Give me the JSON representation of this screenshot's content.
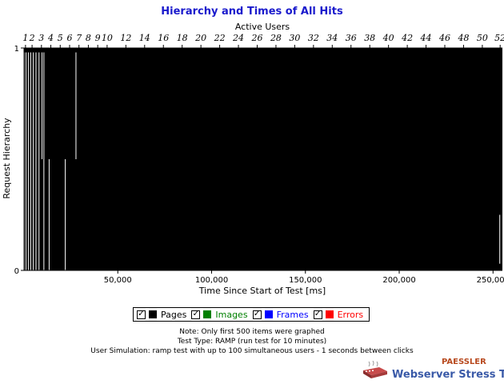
{
  "chart_data": {
    "type": "bar",
    "title": "Hierarchy and Times of All Hits",
    "xlabel": "Time Since Start of Test [ms]",
    "ylabel": "Request Hierarchy",
    "x2label": "Active Users",
    "xlim": [
      0,
      255000
    ],
    "ylim": [
      0,
      1
    ],
    "x_ticks": [
      {
        "value": 50000,
        "label": "50,000"
      },
      {
        "value": 100000,
        "label": "100,000"
      },
      {
        "value": 150000,
        "label": "150,000"
      },
      {
        "value": 200000,
        "label": "200,000"
      },
      {
        "value": 250000,
        "label": "250,000"
      }
    ],
    "y_ticks": [
      {
        "value": 0,
        "label": "0"
      },
      {
        "value": 1,
        "label": "1"
      }
    ],
    "top_ticks": [
      {
        "value": 1,
        "x": 800,
        "label": "1"
      },
      {
        "value": 2,
        "x": 4300,
        "label": "2"
      },
      {
        "value": 3,
        "x": 9300,
        "label": "3"
      },
      {
        "value": 4,
        "x": 14300,
        "label": "4"
      },
      {
        "value": 5,
        "x": 19300,
        "label": "5"
      },
      {
        "value": 6,
        "x": 24300,
        "label": "6"
      },
      {
        "value": 7,
        "x": 29300,
        "label": "7"
      },
      {
        "value": 8,
        "x": 34300,
        "label": "8"
      },
      {
        "value": 9,
        "x": 39300,
        "label": "9"
      },
      {
        "value": 10,
        "x": 44300,
        "label": "10"
      },
      {
        "value": 12,
        "x": 54300,
        "label": "12"
      },
      {
        "value": 14,
        "x": 64300,
        "label": "14"
      },
      {
        "value": 16,
        "x": 74300,
        "label": "16"
      },
      {
        "value": 18,
        "x": 84300,
        "label": "18"
      },
      {
        "value": 20,
        "x": 94300,
        "label": "20"
      },
      {
        "value": 22,
        "x": 104300,
        "label": "22"
      },
      {
        "value": 24,
        "x": 114300,
        "label": "24"
      },
      {
        "value": 26,
        "x": 124300,
        "label": "26"
      },
      {
        "value": 28,
        "x": 134300,
        "label": "28"
      },
      {
        "value": 30,
        "x": 144300,
        "label": "30"
      },
      {
        "value": 32,
        "x": 154300,
        "label": "32"
      },
      {
        "value": 34,
        "x": 164300,
        "label": "34"
      },
      {
        "value": 36,
        "x": 174300,
        "label": "36"
      },
      {
        "value": 38,
        "x": 184300,
        "label": "38"
      },
      {
        "value": 40,
        "x": 194300,
        "label": "40"
      },
      {
        "value": 42,
        "x": 204300,
        "label": "42"
      },
      {
        "value": 44,
        "x": 214300,
        "label": "44"
      },
      {
        "value": 46,
        "x": 224300,
        "label": "46"
      },
      {
        "value": 48,
        "x": 234300,
        "label": "48"
      },
      {
        "value": 50,
        "x": 244300,
        "label": "50"
      },
      {
        "value": 52,
        "x": 253800,
        "label": "52"
      }
    ],
    "gaps": [
      {
        "x": 150,
        "y0": 0,
        "y1": 0.98
      },
      {
        "x": 1100,
        "y0": 0,
        "y1": 0.98
      },
      {
        "x": 2300,
        "y0": 0,
        "y1": 0.98
      },
      {
        "x": 3600,
        "y0": 0,
        "y1": 0.98
      },
      {
        "x": 4900,
        "y0": 0,
        "y1": 0.98
      },
      {
        "x": 6400,
        "y0": 0,
        "y1": 0.98
      },
      {
        "x": 8000,
        "y0": 0,
        "y1": 0.98
      },
      {
        "x": 9600,
        "y0": 0.5,
        "y1": 0.98
      },
      {
        "x": 10600,
        "y0": 0,
        "y1": 0.98
      },
      {
        "x": 13400,
        "y0": 0,
        "y1": 0.5
      },
      {
        "x": 22000,
        "y0": 0,
        "y1": 0.5
      },
      {
        "x": 27700,
        "y0": 0.5,
        "y1": 0.98
      },
      {
        "x": 253600,
        "y0": 0.03,
        "y1": 0.25
      }
    ],
    "series": [
      {
        "name": "Pages",
        "color": "#000000",
        "checked": true
      },
      {
        "name": "Images",
        "color": "#008000",
        "checked": true
      },
      {
        "name": "Frames",
        "color": "#0000ff",
        "checked": true
      },
      {
        "name": "Errors",
        "color": "#ff0000",
        "checked": true
      }
    ]
  },
  "legend": {
    "check_glyph": "✓",
    "items": [
      {
        "label": "Pages",
        "color": "#000000",
        "text_color": "#000000"
      },
      {
        "label": "Images",
        "color": "#008000",
        "text_color": "#008000"
      },
      {
        "label": "Frames",
        "color": "#0000ff",
        "text_color": "#0000ff"
      },
      {
        "label": "Errors",
        "color": "#ff0000",
        "text_color": "#ff0000"
      }
    ]
  },
  "notes": {
    "line1": "Note: Only first 500 items were graphed",
    "line2": "Test Type: RAMP (run test for 10 minutes)",
    "line3": "User Simulation: ramp test with up to 100 simultaneous users - 1 seconds between clicks"
  },
  "branding": {
    "company": "PAESSLER",
    "product": "Webserver Stress Tool",
    "logo_icon": "stress-tool-logo-icon"
  },
  "colors": {
    "title": "#1a1acc",
    "brand_company": "#b84a1f",
    "brand_product": "#3a5aa8"
  }
}
